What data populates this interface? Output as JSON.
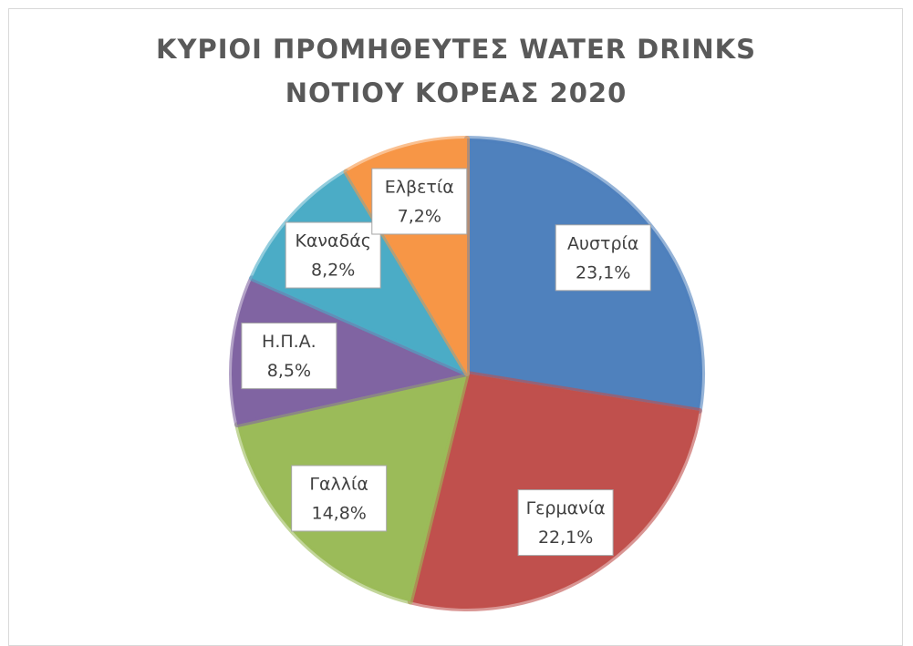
{
  "chart_data": {
    "type": "pie",
    "title": "ΚΥΡΙΟΙ ΠΡΟΜΗΘΕΥΤΕΣ WATER DRINKS ΝΟΤΙΟΥ ΚΟΡΕΑΣ 2020",
    "categories": [
      "Αυστρία",
      "Γερμανία",
      "Γαλλία",
      "Η.Π.Α.",
      "Καναδάς",
      "Ελβετία"
    ],
    "values": [
      23.1,
      22.1,
      14.8,
      8.5,
      8.2,
      7.2
    ],
    "value_labels": [
      "23,1%",
      "22,1%",
      "14,8%",
      "8,5%",
      "8,2%",
      "7,2%"
    ],
    "colors": [
      "#4f81bd",
      "#c0504d",
      "#9bbb59",
      "#8064a2",
      "#4bacc6",
      "#f79646"
    ]
  }
}
